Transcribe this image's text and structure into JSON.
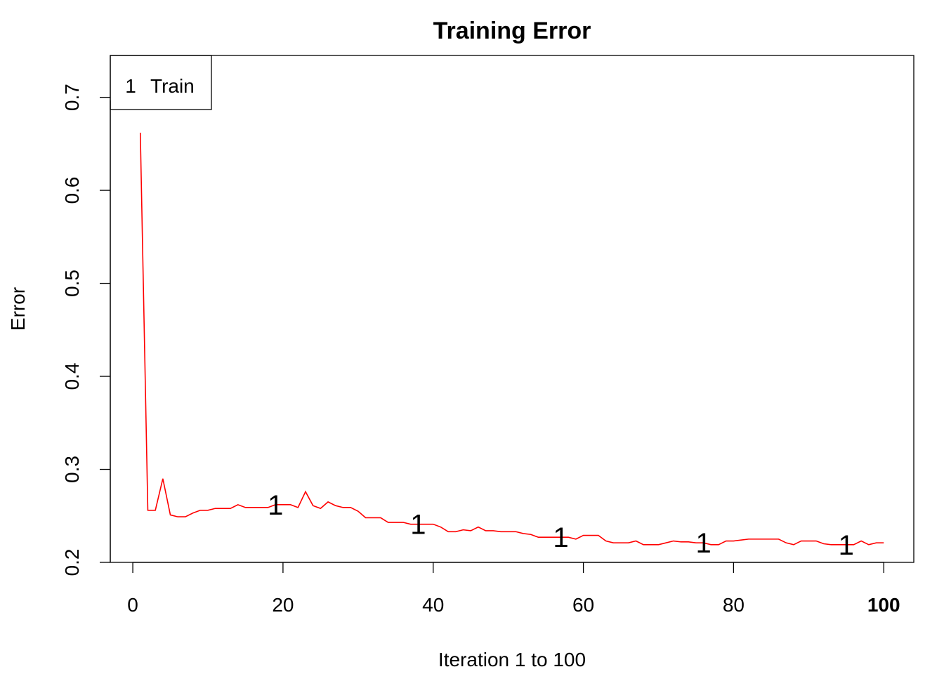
{
  "chart_data": {
    "type": "line",
    "title": "Training Error",
    "xlabel": "Iteration 1 to 100",
    "ylabel": "Error",
    "xlim": [
      -3,
      104
    ],
    "ylim": [
      0.2,
      0.745
    ],
    "x_ticks": [
      0,
      20,
      40,
      60,
      80,
      100
    ],
    "x_tick_labels": [
      "0",
      "20",
      "40",
      "60",
      "80",
      "100"
    ],
    "x_tick_bold": [
      false,
      false,
      false,
      false,
      false,
      true
    ],
    "y_ticks": [
      0.2,
      0.3,
      0.4,
      0.5,
      0.6,
      0.7
    ],
    "y_tick_labels": [
      "0.2",
      "0.3",
      "0.4",
      "0.5",
      "0.6",
      "0.7"
    ],
    "grid": false,
    "legend": {
      "position": "top-left",
      "entries": [
        {
          "symbol": "1",
          "label": "Train"
        }
      ]
    },
    "series": [
      {
        "name": "Train",
        "color": "#ff0000",
        "marker_symbol": "1",
        "marker_x": [
          19,
          38,
          57,
          76,
          95
        ],
        "x": [
          1,
          2,
          3,
          4,
          5,
          6,
          7,
          8,
          9,
          10,
          11,
          12,
          13,
          14,
          15,
          16,
          17,
          18,
          19,
          20,
          21,
          22,
          23,
          24,
          25,
          26,
          27,
          28,
          29,
          30,
          31,
          32,
          33,
          34,
          35,
          36,
          37,
          38,
          39,
          40,
          41,
          42,
          43,
          44,
          45,
          46,
          47,
          48,
          49,
          50,
          51,
          52,
          53,
          54,
          55,
          56,
          57,
          58,
          59,
          60,
          61,
          62,
          63,
          64,
          65,
          66,
          67,
          68,
          69,
          70,
          71,
          72,
          73,
          74,
          75,
          76,
          77,
          78,
          79,
          80,
          81,
          82,
          83,
          84,
          85,
          86,
          87,
          88,
          89,
          90,
          91,
          92,
          93,
          94,
          95,
          96,
          97,
          98,
          99,
          100
        ],
        "values": [
          0.662,
          0.256,
          0.256,
          0.29,
          0.251,
          0.249,
          0.249,
          0.253,
          0.256,
          0.256,
          0.258,
          0.258,
          0.258,
          0.262,
          0.259,
          0.259,
          0.259,
          0.259,
          0.262,
          0.262,
          0.262,
          0.259,
          0.276,
          0.261,
          0.258,
          0.265,
          0.261,
          0.259,
          0.259,
          0.255,
          0.248,
          0.248,
          0.248,
          0.243,
          0.243,
          0.243,
          0.241,
          0.241,
          0.241,
          0.241,
          0.238,
          0.233,
          0.233,
          0.235,
          0.234,
          0.238,
          0.234,
          0.234,
          0.233,
          0.233,
          0.233,
          0.231,
          0.23,
          0.227,
          0.227,
          0.227,
          0.227,
          0.227,
          0.225,
          0.229,
          0.229,
          0.229,
          0.223,
          0.221,
          0.221,
          0.221,
          0.223,
          0.219,
          0.219,
          0.219,
          0.221,
          0.223,
          0.222,
          0.222,
          0.221,
          0.221,
          0.219,
          0.219,
          0.223,
          0.223,
          0.224,
          0.225,
          0.225,
          0.225,
          0.225,
          0.225,
          0.221,
          0.219,
          0.223,
          0.223,
          0.223,
          0.22,
          0.219,
          0.219,
          0.219,
          0.219,
          0.223,
          0.219,
          0.221,
          0.221
        ]
      }
    ]
  }
}
